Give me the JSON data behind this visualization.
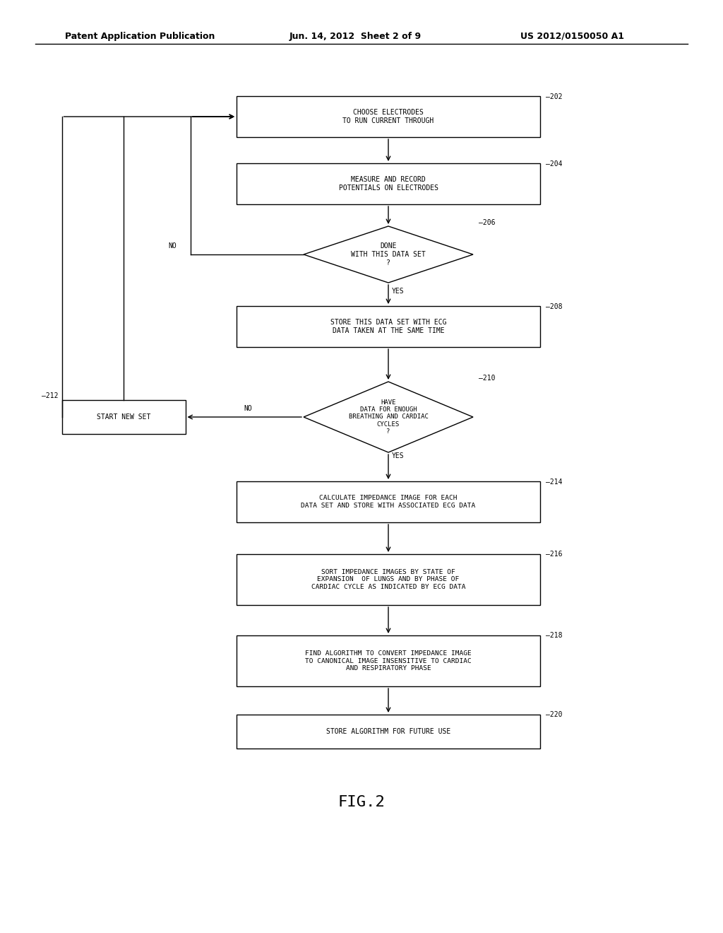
{
  "bg_color": "#ffffff",
  "header_left": "Patent Application Publication",
  "header_mid": "Jun. 14, 2012  Sheet 2 of 9",
  "header_right": "US 2012/0150050 A1",
  "figure_label": "FIG.2",
  "font_size": 7.0,
  "lw": 1.0
}
